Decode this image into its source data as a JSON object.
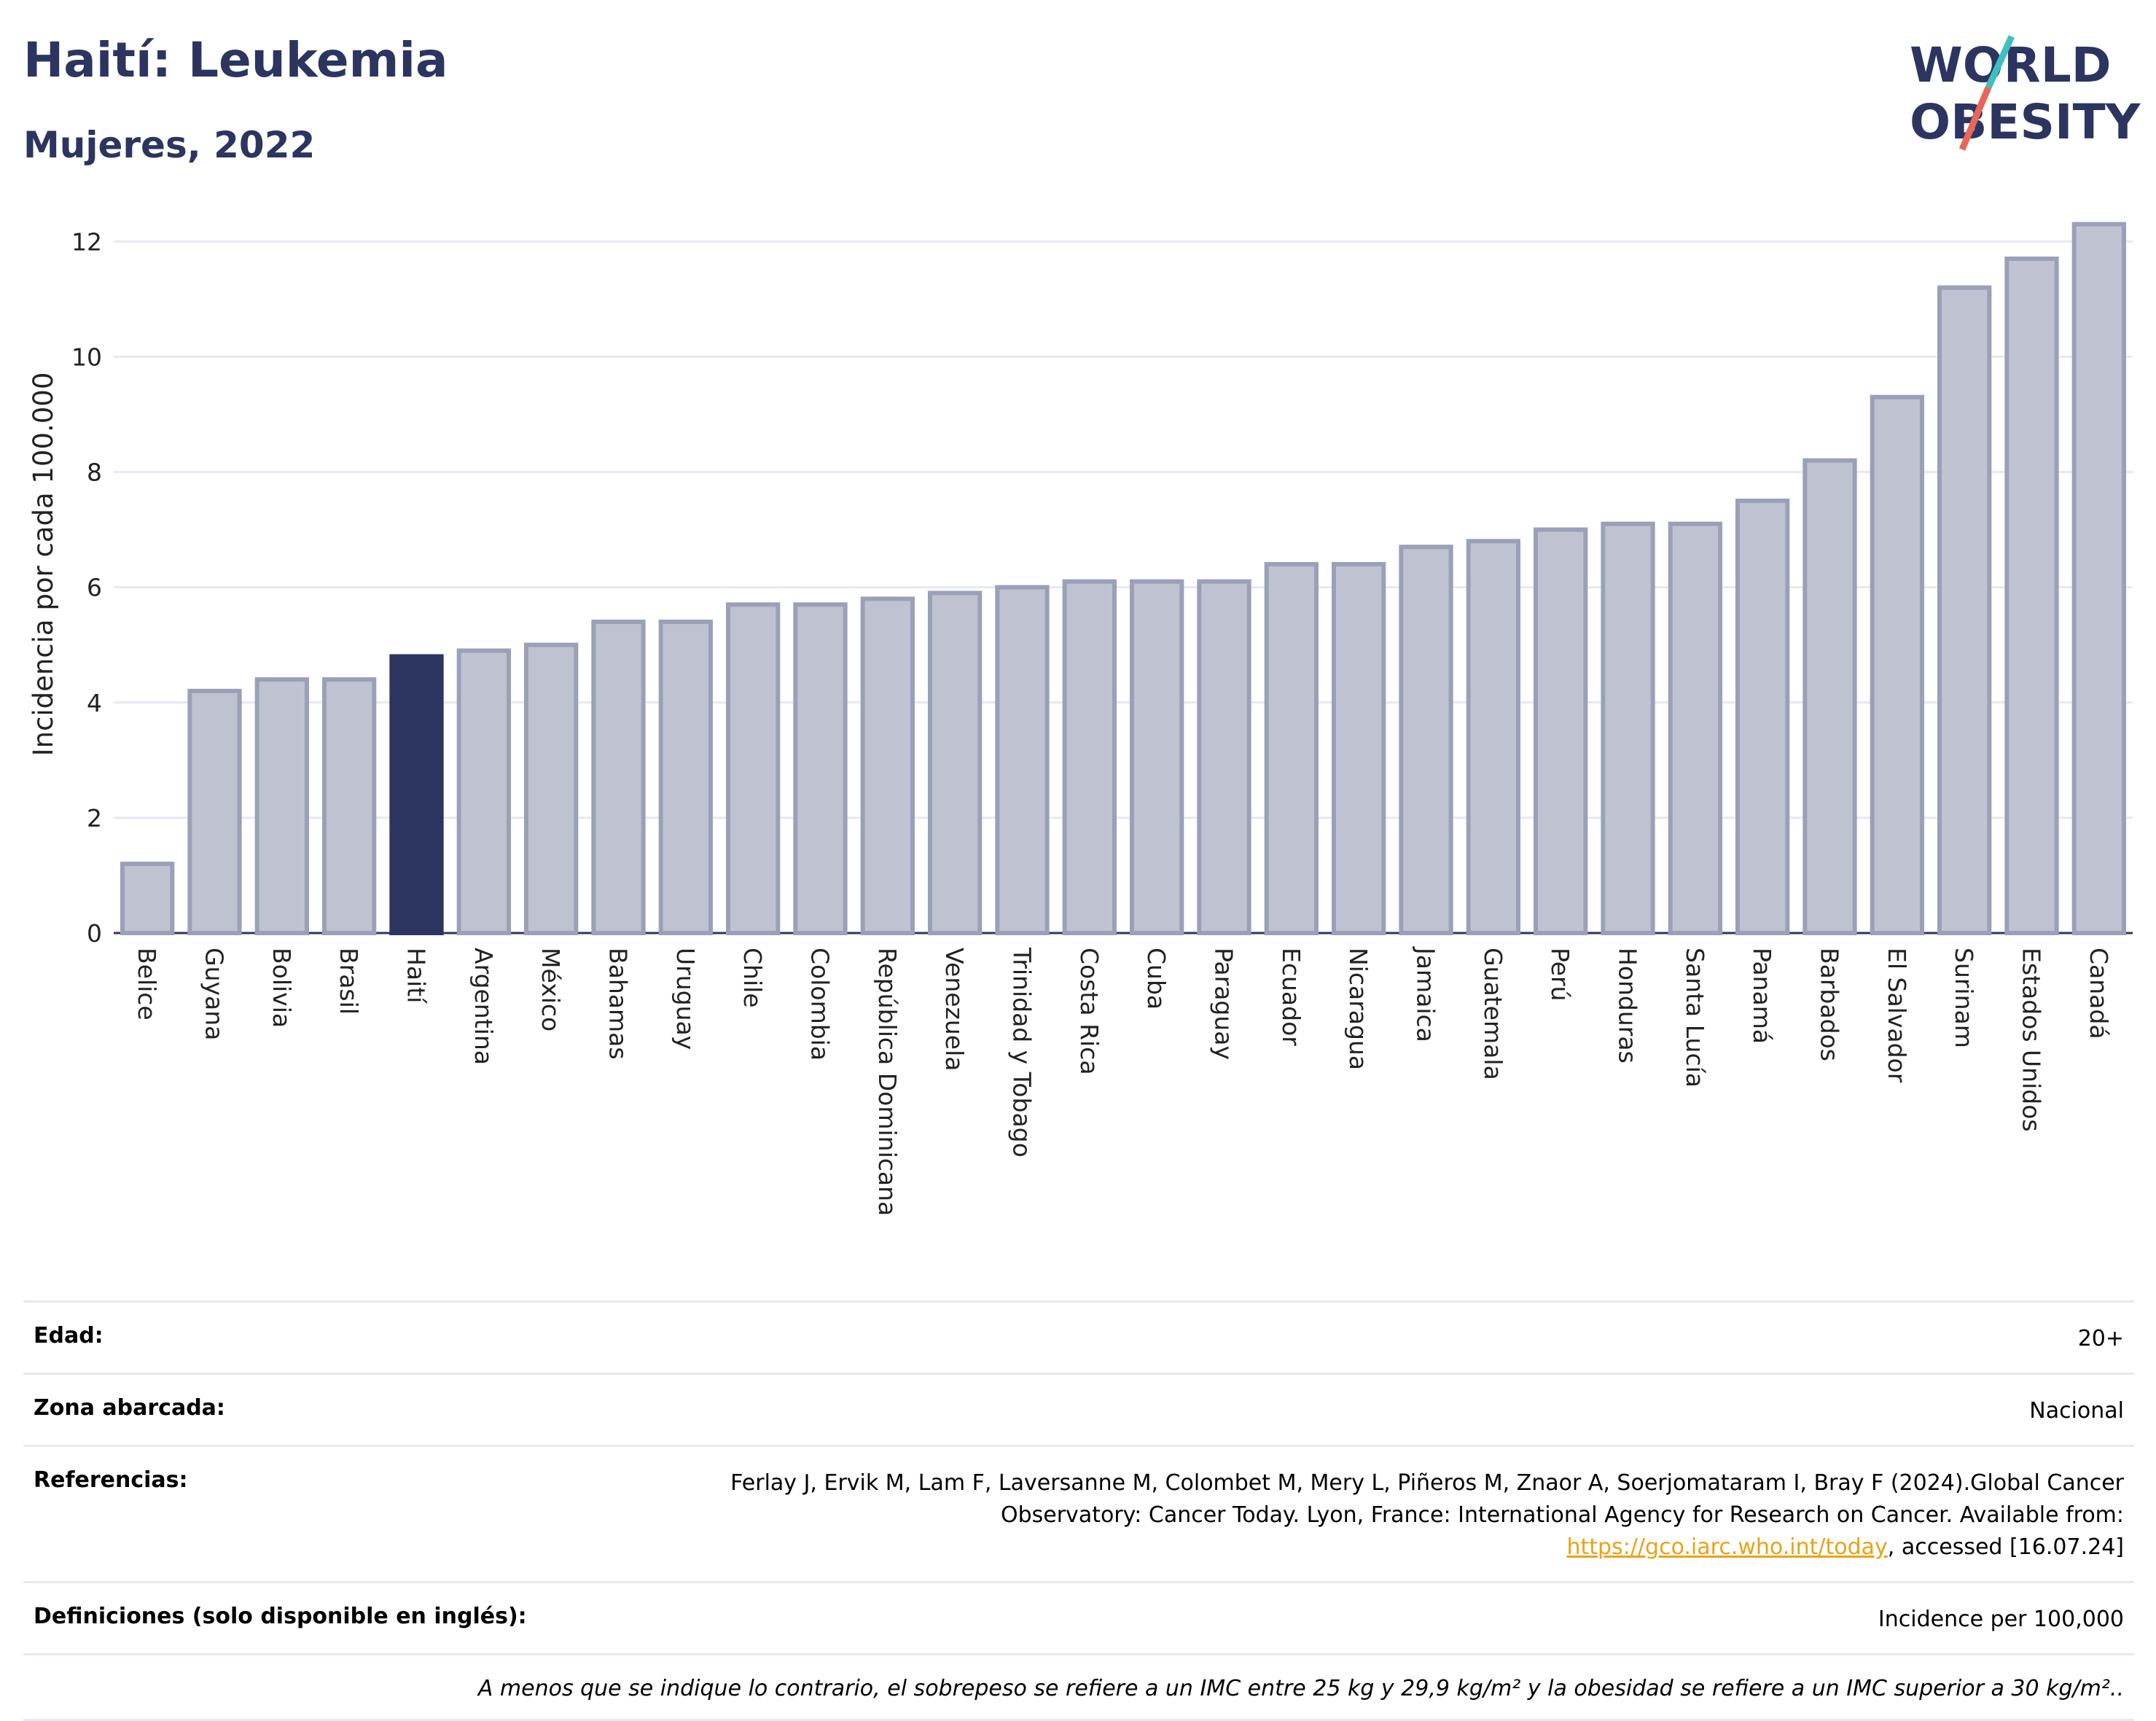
{
  "header": {
    "title": "Haití: Leukemia",
    "subtitle": "Mujeres, 2022",
    "logo_line1": "WORLD",
    "logo_line2": "OBESITY"
  },
  "colors": {
    "highlight": "#2b3560",
    "bar_fill": "#bfc3d1",
    "bar_stroke": "#9aa0b8",
    "grid": "#e6e9f2",
    "accent_teal": "#3fbfbf",
    "accent_coral": "#e8675a"
  },
  "chart_data": {
    "type": "bar",
    "title": "Haití: Leukemia",
    "subtitle": "Mujeres, 2022",
    "ylabel": "Incidencia por cada 100.000",
    "xlabel": "",
    "ylim": [
      0,
      12.8
    ],
    "yticks": [
      0,
      2,
      4,
      6,
      8,
      10,
      12
    ],
    "grid": true,
    "highlight": "Haití",
    "categories": [
      "Belice",
      "Guyana",
      "Bolivia",
      "Brasil",
      "Haití",
      "Argentina",
      "México",
      "Bahamas",
      "Uruguay",
      "Chile",
      "Colombia",
      "República Dominicana",
      "Venezuela",
      "Trinidad y Tobago",
      "Costa Rica",
      "Cuba",
      "Paraguay",
      "Ecuador",
      "Nicaragua",
      "Jamaica",
      "Guatemala",
      "Perú",
      "Honduras",
      "Santa Lucía",
      "Panamá",
      "Barbados",
      "El Salvador",
      "Surinam",
      "Estados Unidos",
      "Canadá"
    ],
    "values": [
      1.2,
      4.2,
      4.4,
      4.4,
      4.8,
      4.9,
      5.0,
      5.4,
      5.4,
      5.7,
      5.7,
      5.8,
      5.9,
      6.0,
      6.1,
      6.1,
      6.1,
      6.4,
      6.4,
      6.7,
      6.8,
      7.0,
      7.1,
      7.1,
      7.5,
      8.2,
      9.3,
      11.2,
      11.7,
      12.3
    ]
  },
  "info": {
    "age_label": "Edad:",
    "age_value": "20+",
    "area_label": "Zona abarcada:",
    "area_value": "Nacional",
    "refs_label": "Referencias:",
    "refs_text_1": "Ferlay J, Ervik M, Lam F, Laversanne M, Colombet M, Mery L, Piñeros M, Znaor A, Soerjomataram I, Bray F (2024).Global Cancer Observatory: Cancer Today. Lyon, France: International Agency for Research on Cancer. Available from: ",
    "refs_link": "https://gco.iarc.who.int/today",
    "refs_text_2": ", accessed [16.07.24]",
    "defs_label": "Definiciones (solo disponible en inglés):",
    "defs_value": "Incidence per 100,000",
    "note": "A menos que se indique lo contrario, el sobrepeso se refiere a un IMC entre 25 kg y 29,9 kg/m² y la obesidad se refiere a un IMC superior a 30 kg/m².."
  }
}
